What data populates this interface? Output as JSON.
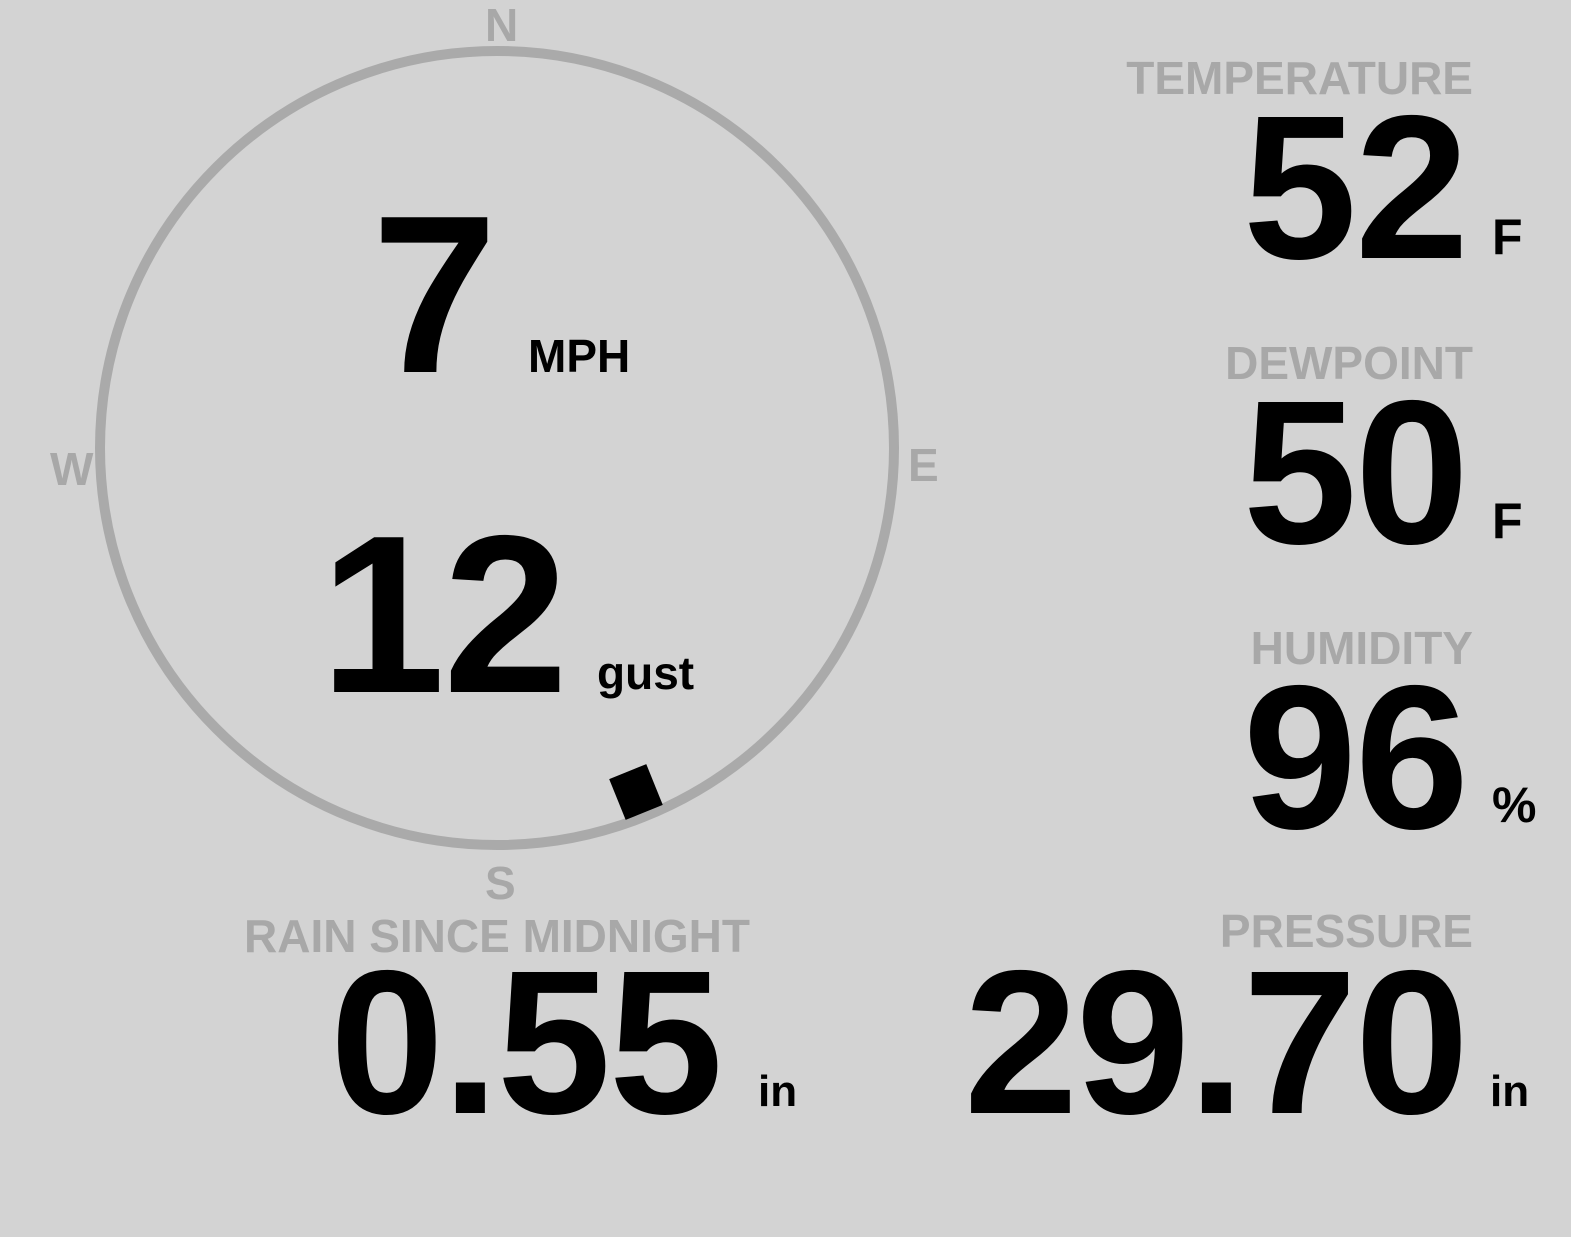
{
  "compass": {
    "north": "N",
    "east": "E",
    "south": "S",
    "west": "W",
    "ring_color": "#aaaaaa",
    "wind_direction_deg": 158
  },
  "wind": {
    "speed": "7",
    "speed_unit": "MPH",
    "gust": "12",
    "gust_unit": "gust"
  },
  "temperature": {
    "label": "TEMPERATURE",
    "value": "52",
    "unit": "F"
  },
  "dewpoint": {
    "label": "DEWPOINT",
    "value": "50",
    "unit": "F"
  },
  "humidity": {
    "label": "HUMIDITY",
    "value": "96",
    "unit": "%"
  },
  "rain": {
    "label": "RAIN SINCE MIDNIGHT",
    "value": "0.55",
    "unit": "in"
  },
  "pressure": {
    "label": "PRESSURE",
    "value": "29.70",
    "unit": "in"
  },
  "colors": {
    "background": "#d3d3d3",
    "label": "#a8a8a8",
    "value": "#000000"
  }
}
